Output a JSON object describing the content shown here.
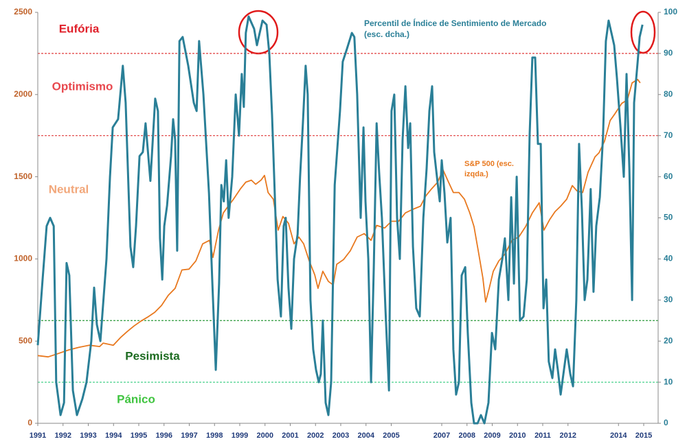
{
  "chart_data": {
    "type": "line",
    "xlim": [
      1991,
      2015
    ],
    "xticks": [
      1991,
      1992,
      1993,
      1994,
      1995,
      1996,
      1997,
      1998,
      1999,
      2000,
      2001,
      2002,
      2003,
      2004,
      2005,
      2007,
      2008,
      2009,
      2010,
      2011,
      2012,
      2014,
      2015
    ],
    "ylim": [
      0,
      2500
    ],
    "yticks": [
      0,
      500,
      1000,
      1500,
      2000,
      2500
    ],
    "y2lim": [
      0,
      100
    ],
    "y2ticks": [
      0,
      10,
      20,
      30,
      40,
      50,
      60,
      70,
      80,
      90,
      100
    ],
    "grid": false,
    "hlines": [
      {
        "value": 90,
        "axis": "y2",
        "color": "#e03a3a"
      },
      {
        "value": 70,
        "axis": "y2",
        "color": "#e03a3a"
      },
      {
        "value": 25,
        "axis": "y2",
        "color": "#2a9a3a"
      },
      {
        "value": 10,
        "axis": "y2",
        "color": "#45d08a"
      }
    ],
    "annotations": [
      {
        "text": "Eufória",
        "color": "#e0202a"
      },
      {
        "text": "Optimismo",
        "color": "#e8484e"
      },
      {
        "text": "Neutral",
        "color": "#f2a77a"
      },
      {
        "text": "Pesimista",
        "color": "#1c6b20"
      },
      {
        "text": "Pánico",
        "color": "#3fc43f"
      }
    ],
    "series": [
      {
        "name": "Percentil de Índice de Sentimiento de Mercado (esc. dcha.)",
        "color": "#2a7f97",
        "axis": "y2",
        "x": [
          1991.0,
          1991.19,
          1991.35,
          1991.49,
          1991.63,
          1991.73,
          1991.9,
          1992.04,
          1992.14,
          1992.25,
          1992.39,
          1992.55,
          1992.77,
          1992.93,
          1993.12,
          1993.23,
          1993.34,
          1993.48,
          1993.72,
          1993.86,
          1993.97,
          1994.18,
          1994.37,
          1994.48,
          1994.67,
          1994.78,
          1994.89,
          1995.03,
          1995.16,
          1995.27,
          1995.46,
          1995.65,
          1995.76,
          1995.84,
          1995.93,
          1996.01,
          1996.12,
          1996.28,
          1996.36,
          1996.44,
          1996.52,
          1996.61,
          1996.74,
          1996.96,
          1997.18,
          1997.29,
          1997.39,
          1997.56,
          1997.78,
          1997.91,
          1998.05,
          1998.18,
          1998.27,
          1998.37,
          1998.46,
          1998.56,
          1998.7,
          1998.84,
          1998.97,
          1999.08,
          1999.16,
          1999.24,
          1999.35,
          1999.57,
          1999.68,
          1999.79,
          1999.9,
          2000.06,
          2000.17,
          2000.28,
          2000.39,
          2000.5,
          2000.63,
          2000.74,
          2000.82,
          2000.93,
          2001.04,
          2001.15,
          2001.29,
          2001.39,
          2001.5,
          2001.61,
          2001.69,
          2001.8,
          2001.91,
          2002.02,
          2002.13,
          2002.21,
          2002.29,
          2002.4,
          2002.51,
          2002.62,
          2002.76,
          2002.97,
          2003.08,
          2003.24,
          2003.44,
          2003.54,
          2003.65,
          2003.79,
          2003.9,
          2003.98,
          2004.09,
          2004.2,
          2004.31,
          2004.42,
          2004.52,
          2004.63,
          2004.77,
          2004.91,
          2005.01,
          2005.12,
          2005.23,
          2005.34,
          2005.45,
          2005.56,
          2005.67,
          2005.75,
          2005.86,
          2005.99,
          2006.13,
          2006.27,
          2006.4,
          2006.51,
          2006.62,
          2006.7,
          2006.81,
          2006.92,
          2007.0,
          2007.11,
          2007.22,
          2007.35,
          2007.46,
          2007.57,
          2007.68,
          2007.79,
          2007.93,
          2008.03,
          2008.17,
          2008.28,
          2008.42,
          2008.55,
          2008.69,
          2008.85,
          2008.99,
          2009.12,
          2009.26,
          2009.4,
          2009.5,
          2009.64,
          2009.75,
          2009.86,
          2009.97,
          2010.1,
          2010.24,
          2010.37,
          2010.48,
          2010.59,
          2010.7,
          2010.81,
          2010.92,
          2011.03,
          2011.14,
          2011.24,
          2011.38,
          2011.49,
          2011.6,
          2011.71,
          2011.82,
          2011.95,
          2012.09,
          2012.2,
          2012.33,
          2012.44,
          2012.55,
          2012.66,
          2012.77,
          2012.9,
          2013.01,
          2013.12,
          2013.26,
          2013.39,
          2013.5,
          2013.61,
          2013.72,
          2013.83,
          2013.94,
          2014.08,
          2014.21,
          2014.32,
          2014.43,
          2014.54,
          2014.62,
          2014.76,
          2014.84,
          2014.95
        ],
        "values": [
          19,
          35,
          48,
          50,
          48,
          10,
          2,
          5,
          39,
          36,
          8,
          2,
          6,
          10,
          20,
          33,
          24,
          20,
          40,
          60,
          72,
          74,
          87,
          78,
          43,
          38,
          48,
          65,
          66,
          73,
          59,
          79,
          76,
          45,
          35,
          48,
          53,
          65,
          74,
          69,
          42,
          93,
          94,
          87,
          78,
          76,
          93,
          80,
          56,
          35,
          13,
          34,
          58,
          54,
          64,
          50,
          60,
          80,
          70,
          85,
          77,
          95,
          99,
          96,
          92,
          95,
          98,
          97,
          90,
          75,
          55,
          35,
          26,
          48,
          50,
          33,
          23,
          40,
          46,
          60,
          73,
          87,
          80,
          30,
          18,
          13,
          10,
          12,
          25,
          5,
          2,
          10,
          58,
          76,
          88,
          91,
          95,
          94,
          80,
          50,
          72,
          54,
          40,
          10,
          38,
          73,
          61,
          50,
          28,
          8,
          76,
          80,
          50,
          40,
          69,
          82,
          67,
          73,
          43,
          28,
          26,
          50,
          62,
          76,
          82,
          66,
          60,
          54,
          64,
          56,
          44,
          50,
          18,
          7,
          10,
          36,
          38,
          22,
          5,
          0,
          0,
          2,
          0,
          5,
          22,
          18,
          35,
          40,
          45,
          30,
          55,
          34,
          60,
          25,
          26,
          35,
          70,
          89,
          89,
          68,
          68,
          28,
          35,
          15,
          11,
          18,
          13,
          7,
          12,
          18,
          12,
          9,
          30,
          68,
          52,
          30,
          35,
          57,
          32,
          48,
          55,
          70,
          93,
          98,
          95,
          92,
          84,
          72,
          60,
          85,
          62,
          30,
          78,
          88,
          94,
          97
        ]
      },
      {
        "name": "S&P 500 (esc. izqda.)",
        "color": "#e8781e",
        "axis": "y",
        "x": [
          1991.0,
          1991.41,
          1991.82,
          1992.22,
          1992.63,
          1993.04,
          1993.45,
          1993.59,
          1993.99,
          1994.27,
          1994.54,
          1994.81,
          1995.08,
          1995.35,
          1995.63,
          1995.9,
          1996.17,
          1996.44,
          1996.71,
          1996.99,
          1997.26,
          1997.53,
          1997.8,
          1997.94,
          1998.16,
          1998.35,
          1998.54,
          1998.75,
          1999.02,
          1999.24,
          1999.46,
          1999.63,
          1999.84,
          1999.98,
          2000.12,
          2000.33,
          2000.52,
          2000.71,
          2000.93,
          2001.15,
          2001.34,
          2001.53,
          2001.75,
          2001.97,
          2002.1,
          2002.29,
          2002.51,
          2002.7,
          2002.84,
          2003.11,
          2003.38,
          2003.65,
          2003.93,
          2004.2,
          2004.42,
          2004.74,
          2005.01,
          2005.29,
          2005.56,
          2005.83,
          2006.16,
          2006.37,
          2006.59,
          2006.84,
          2007.05,
          2007.27,
          2007.46,
          2007.68,
          2007.9,
          2008.11,
          2008.28,
          2008.47,
          2008.63,
          2008.74,
          2008.88,
          2009.04,
          2009.26,
          2009.5,
          2009.78,
          2010.05,
          2010.32,
          2010.59,
          2010.86,
          2011.05,
          2011.27,
          2011.49,
          2011.71,
          2011.95,
          2012.17,
          2012.36,
          2012.58,
          2012.8,
          2013.07,
          2013.23,
          2013.45,
          2013.67,
          2013.86,
          2014.13,
          2014.35,
          2014.54,
          2014.76,
          2014.86
        ],
        "values": [
          412,
          404,
          425,
          446,
          462,
          475,
          467,
          488,
          475,
          521,
          558,
          592,
          621,
          646,
          675,
          717,
          779,
          821,
          933,
          938,
          988,
          1092,
          1113,
          1009,
          1175,
          1280,
          1321,
          1363,
          1425,
          1467,
          1479,
          1454,
          1479,
          1508,
          1404,
          1363,
          1175,
          1258,
          1217,
          1092,
          1133,
          1092,
          988,
          904,
          821,
          925,
          863,
          842,
          967,
          996,
          1050,
          1133,
          1154,
          1113,
          1204,
          1188,
          1229,
          1229,
          1280,
          1300,
          1321,
          1383,
          1425,
          1467,
          1542,
          1467,
          1404,
          1404,
          1363,
          1280,
          1196,
          1029,
          883,
          738,
          821,
          925,
          988,
          1029,
          1113,
          1133,
          1196,
          1280,
          1342,
          1175,
          1238,
          1288,
          1321,
          1363,
          1446,
          1413,
          1404,
          1529,
          1621,
          1646,
          1717,
          1842,
          1883,
          1946,
          1967,
          2071,
          2092,
          2071
        ]
      }
    ]
  }
}
